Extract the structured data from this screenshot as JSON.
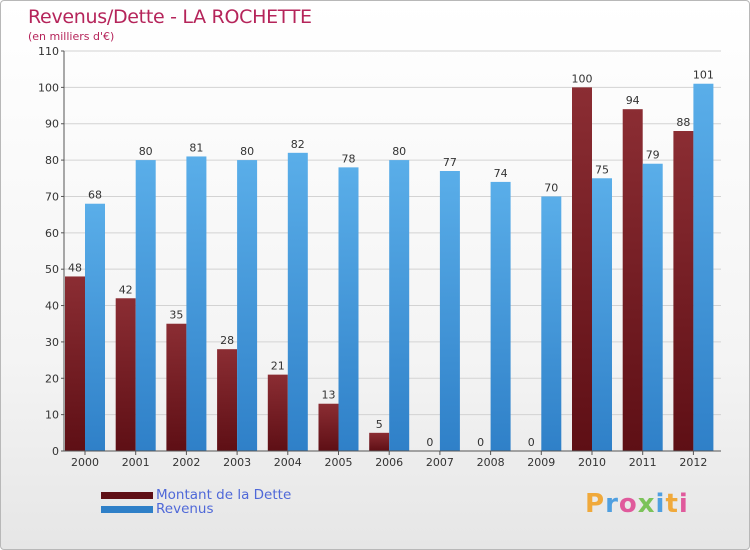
{
  "header": {
    "title": "Revenus/Dette - LA ROCHETTE",
    "subtitle": "(en milliers d'€)"
  },
  "colors": {
    "title": "#b5245a",
    "debt_light": "#8b2d33",
    "debt_dark": "#5e0f15",
    "revenue_light": "#5aaee9",
    "revenue_dark": "#2f80c8",
    "legend_text": "#4f68d8",
    "grid": "#d3d3d3"
  },
  "chart_data": {
    "type": "bar",
    "title": "Revenus/Dette - LA ROCHETTE",
    "ylabel": "(en milliers d'€)",
    "xlabel": "",
    "categories": [
      "2000",
      "2001",
      "2002",
      "2003",
      "2004",
      "2005",
      "2006",
      "2007",
      "2008",
      "2009",
      "2010",
      "2011",
      "2012"
    ],
    "series": [
      {
        "name": "Montant de la Dette",
        "values": [
          48,
          42,
          35,
          28,
          21,
          13,
          5,
          0,
          0,
          0,
          100,
          94,
          88
        ]
      },
      {
        "name": "Revenus",
        "values": [
          68,
          80,
          81,
          80,
          82,
          78,
          80,
          77,
          74,
          70,
          75,
          79,
          101
        ]
      }
    ],
    "ylim": [
      0,
      110
    ],
    "yticks": [
      0,
      10,
      20,
      30,
      40,
      50,
      60,
      70,
      80,
      90,
      100,
      110
    ],
    "grid": true,
    "legend_position": "bottom-left"
  },
  "legend": {
    "debt_label": "Montant de la Dette",
    "revenue_label": "Revenus"
  },
  "logo": {
    "letters": [
      "P",
      "r",
      "o",
      "x",
      "i",
      "t",
      "i"
    ],
    "colors": [
      "#f0a93b",
      "#4f9fe0",
      "#e05a9c",
      "#7cc35a",
      "#4f9fe0",
      "#f0a93b",
      "#e05a9c"
    ]
  }
}
